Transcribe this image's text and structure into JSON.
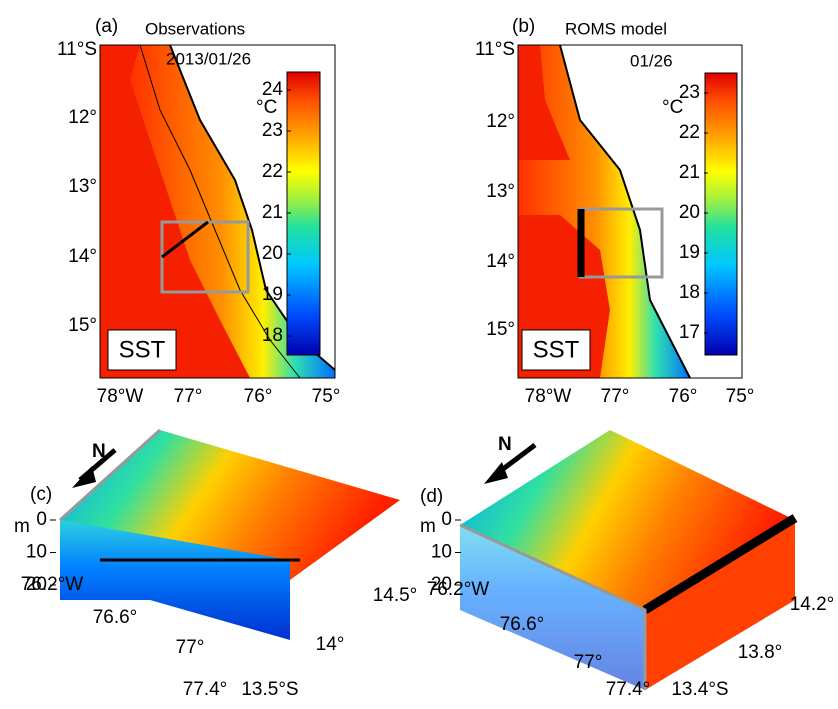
{
  "panels": [
    {
      "label": "(a)",
      "title": "Observations",
      "date": "2013/01/26",
      "field": "SST",
      "unit": "°C",
      "colorbar_ticks": [
        24,
        23,
        22,
        21,
        20,
        19,
        18
      ],
      "lat_labels": [
        "11°S",
        "12°",
        "13°",
        "14°",
        "15°"
      ],
      "lon_labels": [
        "78°W",
        "77°",
        "76°",
        "75°"
      ]
    },
    {
      "label": "(b)",
      "title": "ROMS model",
      "date": "01/26",
      "field": "SST",
      "unit": "°C",
      "colorbar_ticks": [
        23,
        22,
        21,
        20,
        19,
        18,
        17
      ],
      "lat_labels": [
        "11°S",
        "12°",
        "13°",
        "14°",
        "15°"
      ],
      "lon_labels": [
        "78°W",
        "77°",
        "76°",
        "75°"
      ]
    },
    {
      "label": "(c)",
      "north": "N",
      "depth_unit": "m",
      "depth_ticks": [
        0,
        10,
        20
      ],
      "lon_labels": [
        "76.2°W",
        "76.6°",
        "77°",
        "77.4°"
      ],
      "lat_labels": [
        "14.5°",
        "14°",
        "13.5°S"
      ]
    },
    {
      "label": "(d)",
      "north": "N",
      "depth_unit": "m",
      "depth_ticks": [
        0,
        10,
        20
      ],
      "lon_labels": [
        "76.2°W",
        "76.6°",
        "77°",
        "77.4°"
      ],
      "lat_labels": [
        "14.2°",
        "13.8°",
        "13.4°S"
      ]
    }
  ]
}
